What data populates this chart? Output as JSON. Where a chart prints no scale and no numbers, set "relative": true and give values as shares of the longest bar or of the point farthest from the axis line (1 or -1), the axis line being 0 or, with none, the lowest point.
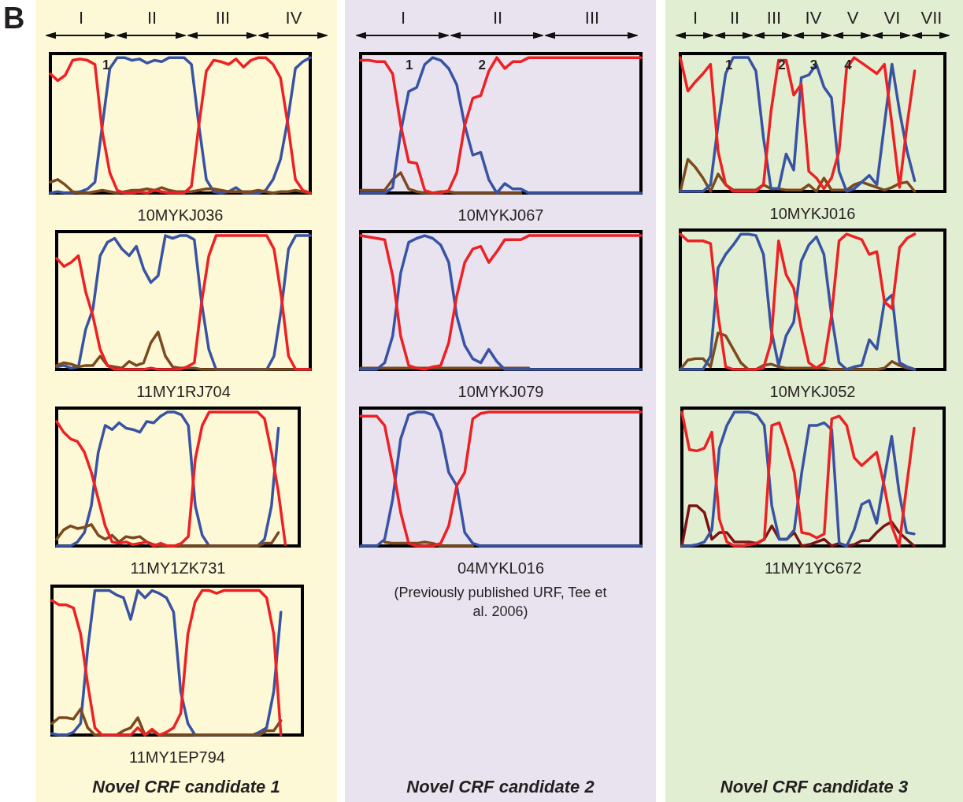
{
  "chart_data": [
    {
      "type": "other",
      "title": "B"
    },
    {
      "type": "other",
      "annotations": [
        "I",
        "II",
        "III",
        "IV"
      ]
    },
    {
      "type": "line",
      "relative": true,
      "xlabel": "10MYKJ036",
      "annotations": [
        "1"
      ],
      "categories": [
        null,
        null,
        null,
        null,
        null,
        null,
        null,
        null,
        null,
        null,
        null,
        null,
        null,
        null,
        null,
        null,
        null,
        null,
        null,
        null,
        null,
        null,
        null,
        null,
        null,
        null,
        null,
        null,
        null,
        null,
        null,
        null,
        null,
        null,
        null,
        null
      ],
      "series": [
        {
          "color": "#3953a4",
          "values": [
            0,
            0.01,
            0,
            0,
            0.01,
            0.03,
            0.08,
            0.5,
            0.92,
            1,
            1,
            0.98,
            0.99,
            0.96,
            0.98,
            0.97,
            1,
            1,
            1,
            0.95,
            0.5,
            0.1,
            0.01,
            0,
            0.01,
            0.04,
            0,
            0,
            0,
            0.02,
            0.1,
            0.25,
            0.55,
            0.92,
            0.97,
            1
          ]
        },
        {
          "color": "#7b4a1e",
          "values": [
            0.08,
            0.1,
            0.06,
            0.01,
            0,
            0,
            0.01,
            0.02,
            0.01,
            0,
            0.01,
            0.02,
            0.02,
            0.03,
            0.02,
            0.04,
            0.02,
            0.01,
            0.01,
            0.01,
            0.02,
            0.03,
            0.03,
            0.02,
            0.01,
            0.01,
            0.01,
            0.01,
            0.02,
            0.01,
            0,
            0.01,
            0.01,
            0.02,
            0.01,
            0
          ]
        },
        {
          "color": "#ee2024",
          "values": [
            0.88,
            0.83,
            0.87,
            0.98,
            0.99,
            0.98,
            0.95,
            0.45,
            0.15,
            0.02,
            0,
            0,
            0.01,
            0,
            0.02,
            0.01,
            0,
            0,
            0,
            0.05,
            0.5,
            0.9,
            0.98,
            0.97,
            0.95,
            0.99,
            0.93,
            0.98,
            1,
            1,
            0.95,
            0.85,
            0.5,
            0.1,
            0.02,
            0
          ]
        }
      ]
    },
    {
      "type": "line",
      "relative": true,
      "xlabel": "11MY1RJ704",
      "categories": [
        null,
        null,
        null,
        null,
        null,
        null,
        null,
        null,
        null,
        null,
        null,
        null,
        null,
        null,
        null,
        null,
        null,
        null,
        null,
        null,
        null,
        null,
        null,
        null,
        null,
        null,
        null,
        null,
        null,
        null,
        null,
        null,
        null,
        null,
        null,
        null
      ],
      "series": [
        {
          "color": "#3953a4",
          "values": [
            0.02,
            0.03,
            0.01,
            0.02,
            0.3,
            0.45,
            0.85,
            0.95,
            0.98,
            0.9,
            0.85,
            0.92,
            0.75,
            0.65,
            0.7,
            1,
            0.98,
            1,
            1,
            0.97,
            0.5,
            0.15,
            0,
            0,
            0,
            0,
            0,
            0,
            0,
            0,
            0.1,
            0.45,
            0.9,
            1,
            1,
            1
          ]
        },
        {
          "color": "#7b4a1e",
          "values": [
            0.03,
            0.05,
            0.04,
            0.02,
            0.03,
            0.03,
            0.1,
            0.03,
            0.02,
            0.01,
            0.06,
            0.03,
            0.05,
            0.2,
            0.28,
            0.1,
            0.02,
            0.01,
            0.01,
            0.01,
            0,
            0,
            0,
            0,
            0,
            0,
            0,
            0,
            0,
            0,
            0,
            0,
            0,
            0,
            0,
            0
          ]
        },
        {
          "color": "#ee2024",
          "values": [
            0.83,
            0.77,
            0.8,
            0.85,
            0.58,
            0.4,
            0.15,
            0.03,
            0,
            0,
            0,
            0,
            0,
            0.01,
            0,
            0,
            0,
            0,
            0.02,
            0.05,
            0.5,
            0.85,
            1,
            1,
            1,
            1,
            1,
            1,
            1,
            1,
            0.9,
            0.55,
            0.1,
            0,
            0,
            0
          ]
        }
      ]
    },
    {
      "type": "line",
      "relative": true,
      "xlabel": "11MY1ZK731",
      "categories": [
        null,
        null,
        null,
        null,
        null,
        null,
        null,
        null,
        null,
        null,
        null,
        null,
        null,
        null,
        null,
        null,
        null,
        null,
        null,
        null,
        null,
        null,
        null,
        null,
        null,
        null,
        null,
        null,
        null,
        null,
        null,
        null,
        null,
        null,
        null,
        null
      ],
      "series": [
        {
          "color": "#3953a4",
          "values": [
            0,
            0,
            0,
            0.03,
            0.1,
            0.3,
            0.7,
            0.9,
            0.87,
            0.92,
            0.88,
            0.87,
            0.85,
            0.93,
            0.92,
            0.97,
            1,
            1,
            0.98,
            0.9,
            0.3,
            0.08,
            0,
            0,
            0,
            0,
            0,
            0,
            0,
            0,
            0.05,
            0.3,
            0.88,
            null,
            null,
            null
          ]
        },
        {
          "color": "#7b4a1e",
          "values": [
            0.05,
            0.12,
            0.15,
            0.13,
            0.14,
            0.16,
            0.08,
            0.05,
            0.08,
            0.03,
            0.07,
            0.06,
            0.07,
            0.03,
            0.01,
            0,
            0,
            0,
            0,
            0,
            0,
            0,
            0,
            0,
            0,
            0,
            0,
            0,
            0,
            0,
            0.02,
            0.02,
            0.1,
            null,
            null,
            null
          ]
        },
        {
          "color": "#ee2024",
          "values": [
            0.93,
            0.85,
            0.8,
            0.78,
            0.7,
            0.55,
            0.35,
            0.15,
            0.03,
            0.02,
            0.03,
            0.01,
            0.02,
            0.03,
            0,
            0.02,
            0,
            0,
            0.02,
            0.07,
            0.65,
            0.9,
            1,
            1,
            1,
            1,
            1,
            1,
            1,
            1,
            0.95,
            0.7,
            0.4,
            0.01,
            null,
            null
          ]
        }
      ]
    },
    {
      "type": "line",
      "relative": true,
      "xlabel": "11MY1EP794",
      "categories": [
        null,
        null,
        null,
        null,
        null,
        null,
        null,
        null,
        null,
        null,
        null,
        null,
        null,
        null,
        null,
        null,
        null,
        null,
        null,
        null,
        null,
        null,
        null,
        null,
        null,
        null,
        null,
        null,
        null,
        null,
        null,
        null,
        null,
        null,
        null,
        null
      ],
      "series": [
        {
          "color": "#3953a4",
          "values": [
            0.01,
            0,
            0,
            0.02,
            0.08,
            0.6,
            1,
            1,
            1,
            0.97,
            0.95,
            0.8,
            1,
            0.95,
            1,
            0.98,
            0.95,
            0.85,
            0.3,
            0.08,
            0,
            0,
            0,
            0,
            0,
            0,
            0,
            0,
            0,
            0.02,
            0.05,
            0.3,
            0.85,
            null,
            null,
            null
          ]
        },
        {
          "color": "#7b4a1e",
          "values": [
            0.08,
            0.12,
            0.12,
            0.11,
            0.18,
            0.05,
            0,
            0,
            0,
            0,
            0.03,
            0.05,
            0.12,
            0,
            0.03,
            0,
            0,
            0,
            0,
            0,
            0,
            0,
            0,
            0,
            0,
            0,
            0,
            0,
            0,
            0,
            0.03,
            0.03,
            0.1,
            null,
            null,
            null
          ]
        },
        {
          "color": "#ee2024",
          "values": [
            0.93,
            0.9,
            0.9,
            0.88,
            0.7,
            0.35,
            0.05,
            0,
            0,
            0,
            0,
            0,
            0.05,
            0,
            0.04,
            0,
            0.02,
            0.05,
            0.15,
            0.7,
            0.92,
            1,
            1,
            0.98,
            1,
            1,
            1,
            1,
            1,
            1,
            0.95,
            0.7,
            0,
            null,
            null,
            null
          ]
        }
      ]
    },
    {
      "type": "other",
      "title": "Novel CRF candidate 1"
    },
    {
      "type": "other",
      "annotations": [
        "I",
        "II",
        "III"
      ]
    },
    {
      "type": "line",
      "relative": true,
      "xlabel": "10MYKJ067",
      "annotations": [
        "1",
        "2"
      ],
      "categories": [
        null,
        null,
        null,
        null,
        null,
        null,
        null,
        null,
        null,
        null,
        null,
        null,
        null,
        null,
        null,
        null,
        null,
        null,
        null,
        null,
        null,
        null,
        null,
        null,
        null,
        null,
        null,
        null,
        null,
        null,
        null,
        null,
        null,
        null,
        null,
        null
      ],
      "series": [
        {
          "color": "#7b4a1e",
          "values": [
            0.02,
            0.02,
            0.02,
            0.02,
            0.1,
            0.15,
            0.03,
            0.01,
            0,
            0,
            0.01,
            0.01,
            0,
            0,
            0,
            0,
            0,
            0,
            0,
            0,
            0,
            null,
            null,
            null,
            null,
            null,
            null,
            null,
            null,
            null,
            null,
            null,
            null,
            null,
            null,
            null
          ]
        },
        {
          "color": "#3953a4",
          "values": [
            0,
            0,
            0,
            0,
            0.04,
            0.45,
            0.75,
            0.78,
            0.95,
            1,
            0.98,
            0.92,
            0.8,
            0.5,
            0.28,
            0.3,
            0.1,
            0,
            0.07,
            0.03,
            0.03,
            0,
            0,
            0,
            0,
            0,
            0,
            0,
            0,
            0,
            0,
            0,
            0,
            0,
            0,
            0
          ]
        },
        {
          "color": "#ee2024",
          "values": [
            0.98,
            0.98,
            0.97,
            0.97,
            0.88,
            0.5,
            0.23,
            0.22,
            0.02,
            0,
            0,
            0.02,
            0.15,
            0.5,
            0.7,
            0.72,
            0.9,
            1,
            0.92,
            0.97,
            0.97,
            1,
            1,
            1,
            1,
            1,
            1,
            1,
            1,
            1,
            1,
            1,
            1,
            1,
            1,
            1
          ]
        }
      ]
    },
    {
      "type": "line",
      "relative": true,
      "xlabel": "10MYKJ079",
      "categories": [
        null,
        null,
        null,
        null,
        null,
        null,
        null,
        null,
        null,
        null,
        null,
        null,
        null,
        null,
        null,
        null,
        null,
        null,
        null,
        null,
        null,
        null,
        null,
        null,
        null,
        null,
        null,
        null,
        null,
        null,
        null,
        null,
        null,
        null,
        null,
        null
      ],
      "series": [
        {
          "color": "#7b4a1e",
          "values": [
            0.01,
            0.01,
            0.01,
            0.01,
            0.01,
            0.01,
            0.01,
            0.01,
            0.01,
            0.01,
            0.01,
            0.01,
            0.01,
            0.01,
            0.01,
            0.01,
            0.01,
            0.01,
            0.01,
            0.01,
            0.01,
            0.01,
            null,
            null,
            null,
            null,
            null,
            null,
            null,
            null,
            null,
            null,
            null,
            null,
            null,
            null
          ]
        },
        {
          "color": "#3953a4",
          "values": [
            0,
            0,
            0,
            0.05,
            0.25,
            0.72,
            0.95,
            0.98,
            1,
            0.98,
            0.93,
            0.8,
            0.4,
            0.18,
            0.08,
            0.05,
            0.15,
            0.06,
            0,
            0,
            0,
            0,
            0,
            0,
            0,
            0,
            0,
            0,
            0,
            0,
            0,
            0,
            0,
            0,
            0,
            0
          ]
        },
        {
          "color": "#ee2024",
          "values": [
            1,
            0.99,
            0.98,
            0.97,
            0.7,
            0.25,
            0.03,
            0.01,
            0,
            0.02,
            0.03,
            0.2,
            0.55,
            0.8,
            0.9,
            0.92,
            0.8,
            0.88,
            0.97,
            0.97,
            0.97,
            1,
            1,
            1,
            1,
            1,
            1,
            1,
            1,
            1,
            1,
            1,
            1,
            1,
            1,
            1
          ]
        }
      ]
    },
    {
      "type": "line",
      "relative": true,
      "xlabel": "04MYKL016",
      "categories": [
        null,
        null,
        null,
        null,
        null,
        null,
        null,
        null,
        null,
        null,
        null,
        null,
        null,
        null,
        null,
        null,
        null,
        null,
        null,
        null,
        null,
        null,
        null,
        null,
        null,
        null,
        null,
        null,
        null,
        null,
        null,
        null,
        null,
        null,
        null,
        null
      ],
      "series": [
        {
          "color": "#7b4a1e",
          "values": [
            null,
            null,
            null,
            0.03,
            0.02,
            0.02,
            0.02,
            0.02,
            0.03,
            0.02,
            0,
            0,
            0,
            0,
            0,
            null,
            null,
            null,
            null,
            null,
            null,
            null,
            null,
            null,
            null,
            null,
            null,
            null,
            null,
            null,
            null,
            null,
            null,
            null,
            null,
            null
          ]
        },
        {
          "color": "#3953a4",
          "values": [
            0,
            0,
            0,
            0.05,
            0.35,
            0.8,
            0.98,
            1,
            1,
            0.98,
            0.85,
            0.55,
            0.45,
            0.1,
            0.02,
            0,
            0,
            0,
            0,
            0,
            0,
            0,
            0,
            0,
            0,
            0,
            0,
            0,
            0,
            0,
            0,
            0,
            0,
            0,
            0,
            0
          ]
        },
        {
          "color": "#ee2024",
          "values": [
            0.97,
            0.97,
            0.97,
            0.9,
            0.6,
            0.25,
            0.02,
            0,
            0,
            0,
            0.02,
            0.15,
            0.45,
            0.55,
            0.95,
            0.99,
            1,
            1,
            1,
            1,
            1,
            1,
            1,
            1,
            1,
            1,
            1,
            1,
            1,
            1,
            1,
            1,
            1,
            1,
            1,
            1
          ]
        }
      ]
    },
    {
      "type": "other",
      "title": "Novel CRF candidate 2",
      "annotations": [
        "(Previously published URF, Tee et al. 2006)"
      ]
    },
    {
      "type": "other",
      "annotations": [
        "I",
        "II",
        "III",
        "IV",
        "V",
        "VI",
        "VII"
      ]
    },
    {
      "type": "line",
      "relative": true,
      "xlabel": "10MYKJ016",
      "annotations": [
        "1",
        "2",
        "3",
        "4"
      ],
      "categories": [
        null,
        null,
        null,
        null,
        null,
        null,
        null,
        null,
        null,
        null,
        null,
        null,
        null,
        null,
        null,
        null,
        null,
        null,
        null,
        null,
        null,
        null,
        null,
        null,
        null,
        null,
        null,
        null,
        null,
        null,
        null,
        null,
        null,
        null,
        null,
        null
      ],
      "series": [
        {
          "color": "#7b4a1e",
          "values": [
            0,
            0.24,
            0.18,
            0.1,
            0,
            0.13,
            0.05,
            0.01,
            0.01,
            0.01,
            0.01,
            0.05,
            0.02,
            0.02,
            0.01,
            0.01,
            0.01,
            0.05,
            0,
            0.1,
            0.01,
            0.01,
            0.01,
            0.05,
            0.07,
            0.05,
            0.03,
            0.01,
            0.03,
            0.06,
            0.07,
            0,
            null,
            null,
            null,
            null
          ]
        },
        {
          "color": "#3953a4",
          "values": [
            0,
            0,
            0,
            0,
            0.05,
            0.5,
            0.88,
            1,
            1,
            1,
            0.9,
            0.4,
            0.02,
            0.02,
            0.28,
            0.16,
            0.85,
            0.87,
            0.95,
            0.78,
            0.7,
            0.15,
            0,
            0.02,
            0.07,
            0.12,
            0.05,
            0.5,
            0.95,
            0.6,
            0.3,
            0.08,
            null,
            null,
            null,
            null
          ]
        },
        {
          "color": "#ee2024",
          "values": [
            1,
            0.75,
            0.82,
            0.88,
            0.95,
            0.3,
            0.05,
            0,
            0,
            0,
            0,
            0.05,
            0.6,
            0.98,
            0.98,
            0.72,
            0.8,
            0.15,
            0.1,
            0.02,
            0.1,
            0.3,
            0.92,
            1,
            0.96,
            0.92,
            0.88,
            0.95,
            0.5,
            0.03,
            0.5,
            0.9,
            null,
            null,
            null,
            null
          ]
        }
      ]
    },
    {
      "type": "line",
      "relative": true,
      "xlabel": "10MYKJ052",
      "categories": [
        null,
        null,
        null,
        null,
        null,
        null,
        null,
        null,
        null,
        null,
        null,
        null,
        null,
        null,
        null,
        null,
        null,
        null,
        null,
        null,
        null,
        null,
        null,
        null,
        null,
        null,
        null,
        null,
        null,
        null,
        null,
        null,
        null,
        null,
        null,
        null
      ],
      "series": [
        {
          "color": "#7b4a1e",
          "values": [
            0,
            0.07,
            0.08,
            0.08,
            0.02,
            0.27,
            0.25,
            0.15,
            0.05,
            0,
            0,
            0.03,
            0.04,
            0.02,
            0.01,
            0.01,
            0.01,
            0.01,
            0.01,
            0.01,
            0,
            0,
            0,
            0,
            0,
            0,
            0,
            0.01,
            0.06,
            0.03,
            0.01,
            0,
            null,
            null,
            null,
            null
          ]
        },
        {
          "color": "#3953a4",
          "values": [
            0,
            0,
            0,
            0,
            0.1,
            0.75,
            0.85,
            0.92,
            1,
            1,
            0.99,
            0.85,
            0.3,
            0.03,
            0.25,
            0.35,
            0.8,
            0.92,
            0.98,
            0.85,
            0.4,
            0.05,
            0,
            0.02,
            0.03,
            0.22,
            0.15,
            0.5,
            0.55,
            0.05,
            0.02,
            0,
            null,
            null,
            null,
            null
          ]
        },
        {
          "color": "#ee2024",
          "values": [
            1,
            0.95,
            0.95,
            0.95,
            0.93,
            0.4,
            0.02,
            0,
            0,
            0,
            0,
            0.01,
            0.2,
            0.95,
            0.7,
            0.6,
            0.3,
            0.05,
            0.01,
            0.05,
            0.4,
            0.95,
            1,
            0.98,
            0.96,
            0.85,
            0.87,
            0.5,
            0.45,
            0.9,
            0.97,
            1,
            null,
            null,
            null,
            null
          ]
        }
      ]
    },
    {
      "type": "line",
      "relative": true,
      "xlabel": "11MY1YC672",
      "categories": [
        null,
        null,
        null,
        null,
        null,
        null,
        null,
        null,
        null,
        null,
        null,
        null,
        null,
        null,
        null,
        null,
        null,
        null,
        null,
        null,
        null,
        null,
        null,
        null,
        null,
        null,
        null,
        null,
        null,
        null,
        null,
        null,
        null,
        null,
        null,
        null
      ],
      "series": [
        {
          "color": "#7a1416",
          "values": [
            0,
            0.3,
            0.3,
            0.25,
            0.05,
            0.1,
            0.1,
            0.03,
            0.03,
            0.03,
            0.02,
            0.05,
            0.15,
            0.05,
            0.05,
            0.1,
            0,
            0.01,
            0.03,
            0.05,
            0,
            0.02,
            0,
            0.01,
            0.04,
            0.04,
            0.1,
            0.15,
            0.18,
            0.1,
            0.05,
            0,
            null,
            null,
            null,
            null
          ]
        },
        {
          "color": "#3953a4",
          "values": [
            0,
            0,
            0.01,
            0.03,
            0.12,
            0.73,
            0.9,
            1,
            1,
            1,
            0.98,
            0.9,
            0.3,
            0.05,
            0.05,
            0.12,
            0.55,
            0.9,
            0.9,
            0.92,
            0.87,
            0.02,
            0,
            0.12,
            0.31,
            0.34,
            0.17,
            0.5,
            0.82,
            0.4,
            0.1,
            0.09,
            null,
            null,
            null,
            null
          ]
        },
        {
          "color": "#ee2024",
          "values": [
            1,
            0.72,
            0.71,
            0.73,
            0.85,
            0.2,
            0.03,
            0,
            0,
            0.01,
            0.02,
            0.05,
            0.9,
            0.92,
            0.75,
            0.55,
            0.1,
            0.09,
            0.06,
            0.09,
            0.95,
            0.97,
            0.9,
            0.66,
            0.6,
            0.65,
            0.7,
            0.45,
            0.15,
            0,
            0.45,
            0.88,
            null,
            null,
            null,
            null
          ]
        }
      ]
    },
    {
      "type": "other",
      "title": "Novel CRF candidate 3"
    }
  ]
}
